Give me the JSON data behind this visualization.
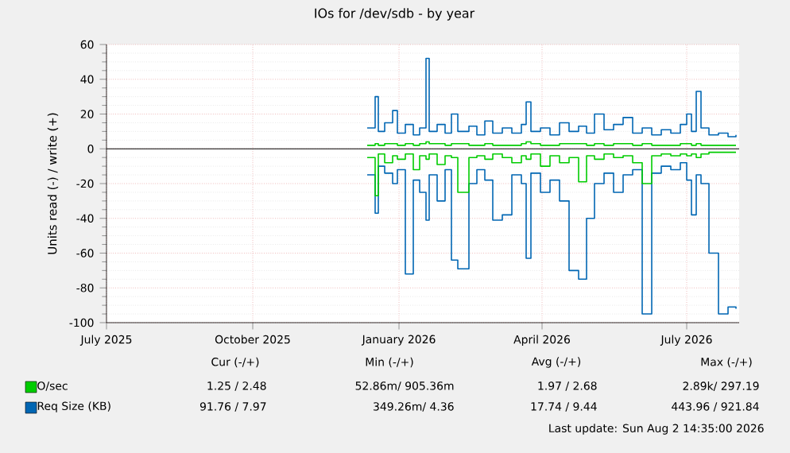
{
  "chart_data": {
    "type": "step",
    "title": "IOs for /dev/sdb - by year",
    "ylabel": "Units read (-) / write (+)",
    "x": [
      "2025-12-12",
      "2025-12-17",
      "2025-12-19",
      "2025-12-23",
      "2025-12-28",
      "2025-12-31",
      "2026-01-05",
      "2026-01-10",
      "2026-01-14",
      "2026-01-18",
      "2026-01-20",
      "2026-01-25",
      "2026-01-30",
      "2026-02-03",
      "2026-02-07",
      "2026-02-14",
      "2026-02-19",
      "2026-02-24",
      "2026-03-01",
      "2026-03-07",
      "2026-03-13",
      "2026-03-19",
      "2026-03-22",
      "2026-03-25",
      "2026-03-31",
      "2026-04-06",
      "2026-04-12",
      "2026-04-18",
      "2026-04-24",
      "2026-04-29",
      "2026-05-04",
      "2026-05-10",
      "2026-05-16",
      "2026-05-22",
      "2026-05-28",
      "2026-06-03",
      "2026-06-09",
      "2026-06-15",
      "2026-06-21",
      "2026-06-27",
      "2026-07-01",
      "2026-07-04",
      "2026-07-07",
      "2026-07-10",
      "2026-07-15",
      "2026-07-21",
      "2026-07-27",
      "2026-08-01"
    ],
    "series": [
      {
        "color": "#0066b3",
        "values": [
          -15,
          -37,
          -10,
          -14,
          -20,
          -12,
          -72,
          -18,
          -25,
          -41,
          -15,
          -30,
          -12,
          -64,
          -69,
          -20,
          -12,
          -18,
          -41,
          -38,
          -15,
          -20,
          -63,
          -14,
          -25,
          -18,
          -30,
          -70,
          -75,
          -40,
          -20,
          -14,
          -25,
          -15,
          -12,
          -95,
          -14,
          -10,
          -12,
          -8,
          -18,
          -38,
          -15,
          -20,
          -60,
          -95,
          -91,
          -92
        ]
      },
      {
        "name": "Req Size (KB)",
        "color": "#0066b3",
        "values": [
          12,
          30,
          10,
          15,
          22,
          9,
          14,
          8,
          12,
          52,
          10,
          14,
          9,
          20,
          10,
          13,
          8,
          16,
          9,
          12,
          9,
          14,
          27,
          10,
          12,
          8,
          15,
          10,
          13,
          9,
          20,
          11,
          14,
          18,
          9,
          12,
          8,
          11,
          9,
          14,
          20,
          10,
          33,
          12,
          8,
          9,
          7,
          8
        ]
      },
      {
        "color": "#00cc00",
        "values": [
          -5,
          -27,
          -3,
          -8,
          -4,
          -6,
          -3,
          -12,
          -4,
          -6,
          -3,
          -9,
          -4,
          -5,
          -25,
          -5,
          -4,
          -6,
          -3,
          -5,
          -8,
          -4,
          -6,
          -3,
          -10,
          -4,
          -8,
          -5,
          -19,
          -4,
          -6,
          -3,
          -5,
          -4,
          -8,
          -20,
          -4,
          -3,
          -4,
          -3,
          -4,
          -3,
          -5,
          -3,
          -2,
          -2,
          -2,
          -2
        ]
      },
      {
        "name": "O/sec",
        "color": "#00cc00",
        "values": [
          2,
          3,
          2,
          3,
          3,
          2,
          3,
          2,
          3,
          4,
          3,
          3,
          2,
          3,
          3,
          2,
          2,
          3,
          2,
          2,
          2,
          3,
          4,
          3,
          2,
          2,
          3,
          3,
          3,
          2,
          3,
          2,
          3,
          3,
          2,
          3,
          2,
          2,
          2,
          3,
          3,
          2,
          3,
          2,
          2,
          2,
          2,
          2
        ]
      }
    ],
    "xlim": [
      "2025-07-01",
      "2026-08-03"
    ],
    "xticks": [
      {
        "value": "2025-07-01",
        "label": "July 2025"
      },
      {
        "value": "2025-10-01",
        "label": "October 2025"
      },
      {
        "value": "2026-01-01",
        "label": "January 2026"
      },
      {
        "value": "2026-04-01",
        "label": "April 2026"
      },
      {
        "value": "2026-07-01",
        "label": "July 2026"
      }
    ],
    "ylim": [
      -100,
      60
    ],
    "yticks": [
      -100,
      -80,
      -60,
      -40,
      -20,
      0,
      20,
      40,
      60
    ],
    "ref_lines": [
      {
        "axis": "y",
        "value": 0,
        "color": "#000000"
      }
    ],
    "grid": true,
    "legend": "bottom",
    "annotations": [
      "Cur (-/+)",
      "Min (-/+)",
      "Avg (-/+)",
      "Max (-/+)",
      "1.25 / 2.48",
      "52.86m/ 905.36m",
      "1.97 / 2.68",
      "2.89k/ 297.19",
      "91.76 / 7.97",
      "349.26m/ 4.36",
      "17.74 / 9.44",
      "443.96 / 921.84",
      "Last update: Sun Aug 2 14:35:00 2026"
    ]
  }
}
